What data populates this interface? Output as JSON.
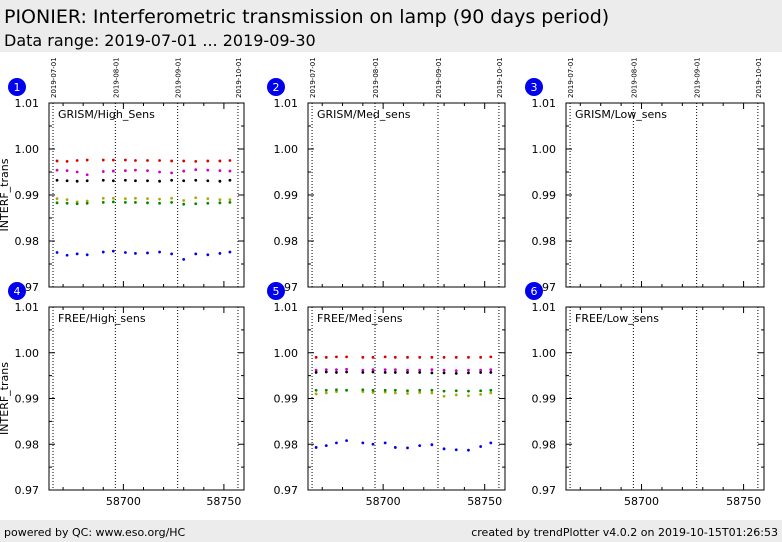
{
  "header": {
    "title": "PIONIER: Interferometric transmission on lamp (90 days period)",
    "subtitle": "Data range: 2019-07-01 ... 2019-09-30"
  },
  "footer": {
    "left": "powered by QC: www.eso.org/HC",
    "right": "created by trendPlotter v4.0.2 on 2019-10-15T01:26:53"
  },
  "colors": {
    "header_bg": "#ececec",
    "badge": "#0000ee",
    "series": [
      "#dd0000",
      "#cc00cc",
      "#000000",
      "#aaaa00",
      "#008800",
      "#0000ee"
    ]
  },
  "chart_data": [
    {
      "type": "scatter",
      "panel": "1",
      "label": "GRISM/High_Sens",
      "ylabel": "INTERF_trans",
      "xlim": [
        58663,
        58760
      ],
      "ylim": [
        0.97,
        1.01
      ],
      "yticks": [
        "0.97",
        "0.98",
        "0.99",
        "1.00",
        "1.01"
      ],
      "date_markers": [
        {
          "mjd": 58665,
          "label": "2019-07-01"
        },
        {
          "mjd": 58696,
          "label": "2019-08-01"
        },
        {
          "mjd": 58727,
          "label": "2019-09-01"
        },
        {
          "mjd": 58757,
          "label": "2019-10-01"
        }
      ],
      "xticks": [],
      "grid": false,
      "series": [
        {
          "x": [
            58667,
            58672,
            58677,
            58682,
            58690,
            58695,
            58701,
            58706,
            58712,
            58718,
            58724,
            58730,
            58736,
            58742,
            58748,
            58753
          ],
          "y": [
            0.9974,
            0.9973,
            0.9975,
            0.9976,
            0.9976,
            0.9976,
            0.9976,
            0.9975,
            0.9975,
            0.9975,
            0.9974,
            0.9974,
            0.9973,
            0.9974,
            0.9974,
            0.9975
          ]
        },
        {
          "x": [
            58667,
            58672,
            58677,
            58682,
            58690,
            58695,
            58701,
            58706,
            58712,
            58718,
            58724,
            58730,
            58736,
            58742,
            58748,
            58753
          ],
          "y": [
            0.9954,
            0.9953,
            0.995,
            0.9944,
            0.9951,
            0.9952,
            0.9953,
            0.9954,
            0.9953,
            0.995,
            0.9948,
            0.9952,
            0.9955,
            0.9954,
            0.9953,
            0.9952
          ]
        },
        {
          "x": [
            58667,
            58672,
            58677,
            58682,
            58690,
            58695,
            58701,
            58706,
            58712,
            58718,
            58724,
            58730,
            58736,
            58742,
            58748,
            58753
          ],
          "y": [
            0.9932,
            0.9931,
            0.993,
            0.9931,
            0.9932,
            0.9931,
            0.9932,
            0.9931,
            0.9931,
            0.993,
            0.9932,
            0.9931,
            0.9932,
            0.9931,
            0.993,
            0.9932
          ]
        },
        {
          "x": [
            58667,
            58672,
            58677,
            58682,
            58690,
            58695,
            58701,
            58706,
            58712,
            58718,
            58724,
            58730,
            58736,
            58742,
            58748,
            58753
          ],
          "y": [
            0.9892,
            0.989,
            0.9885,
            0.9887,
            0.9893,
            0.9893,
            0.9892,
            0.9893,
            0.9892,
            0.9891,
            0.9893,
            0.9888,
            0.9894,
            0.9892,
            0.989,
            0.989
          ]
        },
        {
          "x": [
            58667,
            58672,
            58677,
            58682,
            58690,
            58695,
            58701,
            58706,
            58712,
            58718,
            58724,
            58730,
            58736,
            58742,
            58748,
            58753
          ],
          "y": [
            0.9883,
            0.9882,
            0.9881,
            0.9882,
            0.9884,
            0.9885,
            0.9884,
            0.9884,
            0.9883,
            0.9882,
            0.9884,
            0.988,
            0.9881,
            0.9882,
            0.9883,
            0.9884
          ]
        },
        {
          "x": [
            58667,
            58672,
            58677,
            58682,
            58690,
            58695,
            58701,
            58706,
            58712,
            58718,
            58724,
            58730,
            58736,
            58742,
            58748,
            58753
          ],
          "y": [
            0.9775,
            0.9769,
            0.9772,
            0.977,
            0.9776,
            0.9778,
            0.9775,
            0.9773,
            0.9774,
            0.9776,
            0.9772,
            0.976,
            0.9772,
            0.977,
            0.9773,
            0.9776
          ]
        }
      ]
    },
    {
      "type": "scatter",
      "panel": "2",
      "label": "GRISM/Med_sens",
      "ylabel": "",
      "xlim": [
        58663,
        58760
      ],
      "ylim": [
        0.97,
        1.01
      ],
      "yticks": [
        "0.97",
        "0.98",
        "0.99",
        "1.00",
        "1.01"
      ],
      "date_markers": [
        {
          "mjd": 58665,
          "label": "2019-07-01"
        },
        {
          "mjd": 58696,
          "label": "2019-08-01"
        },
        {
          "mjd": 58727,
          "label": "2019-09-01"
        },
        {
          "mjd": 58757,
          "label": "2019-10-01"
        }
      ],
      "xticks": [],
      "grid": false,
      "series": []
    },
    {
      "type": "scatter",
      "panel": "3",
      "label": "GRISM/Low_sens",
      "ylabel": "",
      "xlim": [
        58663,
        58760
      ],
      "ylim": [
        0.97,
        1.01
      ],
      "yticks": [
        "0.97",
        "0.98",
        "0.99",
        "1.00",
        "1.01"
      ],
      "date_markers": [
        {
          "mjd": 58665,
          "label": "2019-07-01"
        },
        {
          "mjd": 58696,
          "label": "2019-08-01"
        },
        {
          "mjd": 58727,
          "label": "2019-09-01"
        },
        {
          "mjd": 58757,
          "label": "2019-10-01"
        }
      ],
      "xticks": [],
      "grid": false,
      "series": []
    },
    {
      "type": "scatter",
      "panel": "4",
      "label": "FREE/High_sens",
      "ylabel": "INTERF_trans",
      "xlim": [
        58663,
        58760
      ],
      "ylim": [
        0.97,
        1.01
      ],
      "yticks": [
        "0.97",
        "0.98",
        "0.99",
        "1.00",
        "1.01"
      ],
      "date_markers": [
        {
          "mjd": 58665,
          "label": ""
        },
        {
          "mjd": 58696,
          "label": ""
        },
        {
          "mjd": 58727,
          "label": ""
        },
        {
          "mjd": 58757,
          "label": ""
        }
      ],
      "xticks": [
        {
          "value": 58700,
          "label": "58700"
        },
        {
          "value": 58750,
          "label": "58750"
        }
      ],
      "grid": false,
      "series": []
    },
    {
      "type": "scatter",
      "panel": "5",
      "label": "FREE/Med_sens",
      "ylabel": "",
      "xlim": [
        58663,
        58760
      ],
      "ylim": [
        0.97,
        1.01
      ],
      "yticks": [
        "0.97",
        "0.98",
        "0.99",
        "1.00",
        "1.01"
      ],
      "date_markers": [
        {
          "mjd": 58665,
          "label": ""
        },
        {
          "mjd": 58696,
          "label": ""
        },
        {
          "mjd": 58727,
          "label": ""
        },
        {
          "mjd": 58757,
          "label": ""
        }
      ],
      "xticks": [
        {
          "value": 58700,
          "label": "58700"
        },
        {
          "value": 58750,
          "label": "58750"
        }
      ],
      "grid": false,
      "series": [
        {
          "x": [
            58667,
            58672,
            58677,
            58682,
            58690,
            58695,
            58701,
            58706,
            58712,
            58718,
            58724,
            58730,
            58736,
            58742,
            58748,
            58753
          ],
          "y": [
            0.999,
            0.999,
            0.9991,
            0.9991,
            0.999,
            0.999,
            0.9991,
            0.999,
            0.999,
            0.999,
            0.999,
            0.999,
            0.999,
            0.999,
            0.999,
            0.9991
          ]
        },
        {
          "x": [
            58667,
            58672,
            58677,
            58682,
            58690,
            58695,
            58701,
            58706,
            58712,
            58718,
            58724,
            58730,
            58736,
            58742,
            58748,
            58753
          ],
          "y": [
            0.9962,
            0.9963,
            0.9963,
            0.9964,
            0.9962,
            0.9963,
            0.9963,
            0.9963,
            0.9962,
            0.9962,
            0.9963,
            0.9962,
            0.9961,
            0.9962,
            0.9962,
            0.9963
          ]
        },
        {
          "x": [
            58667,
            58672,
            58677,
            58682,
            58690,
            58695,
            58701,
            58706,
            58712,
            58718,
            58724,
            58730,
            58736,
            58742,
            58748,
            58753
          ],
          "y": [
            0.9957,
            0.9958,
            0.9957,
            0.9958,
            0.9957,
            0.9958,
            0.9957,
            0.9957,
            0.9957,
            0.9957,
            0.9956,
            0.9956,
            0.9955,
            0.9956,
            0.9957,
            0.9957
          ]
        },
        {
          "x": [
            58667,
            58672,
            58677,
            58682,
            58690,
            58695,
            58701,
            58706,
            58712,
            58718,
            58724,
            58730,
            58736,
            58742,
            58748,
            58753
          ],
          "y": [
            0.991,
            0.9912,
            0.9915,
            0.9918,
            0.9915,
            0.9913,
            0.9914,
            0.9912,
            0.9911,
            0.9913,
            0.9912,
            0.9905,
            0.9908,
            0.9906,
            0.9909,
            0.9912
          ]
        },
        {
          "x": [
            58667,
            58672,
            58677,
            58682,
            58690,
            58695,
            58701,
            58706,
            58712,
            58718,
            58724,
            58730,
            58736,
            58742,
            58748,
            58753
          ],
          "y": [
            0.9918,
            0.9918,
            0.9919,
            0.9918,
            0.9919,
            0.9918,
            0.9918,
            0.9918,
            0.9917,
            0.9918,
            0.9918,
            0.9916,
            0.9917,
            0.9916,
            0.9917,
            0.9918
          ]
        },
        {
          "x": [
            58667,
            58672,
            58677,
            58682,
            58690,
            58695,
            58701,
            58706,
            58712,
            58718,
            58724,
            58730,
            58736,
            58742,
            58748,
            58753
          ],
          "y": [
            0.9793,
            0.9797,
            0.9803,
            0.9808,
            0.9803,
            0.98,
            0.9803,
            0.9793,
            0.9792,
            0.9797,
            0.9799,
            0.979,
            0.9788,
            0.9787,
            0.9795,
            0.9803
          ]
        }
      ]
    },
    {
      "type": "scatter",
      "panel": "6",
      "label": "FREE/Low_sens",
      "ylabel": "",
      "xlim": [
        58663,
        58760
      ],
      "ylim": [
        0.97,
        1.01
      ],
      "yticks": [
        "0.97",
        "0.98",
        "0.99",
        "1.00",
        "1.01"
      ],
      "date_markers": [
        {
          "mjd": 58665,
          "label": ""
        },
        {
          "mjd": 58696,
          "label": ""
        },
        {
          "mjd": 58727,
          "label": ""
        },
        {
          "mjd": 58757,
          "label": ""
        }
      ],
      "xticks": [
        {
          "value": 58700,
          "label": "58700"
        },
        {
          "value": 58750,
          "label": "58750"
        }
      ],
      "grid": false,
      "series": []
    }
  ]
}
